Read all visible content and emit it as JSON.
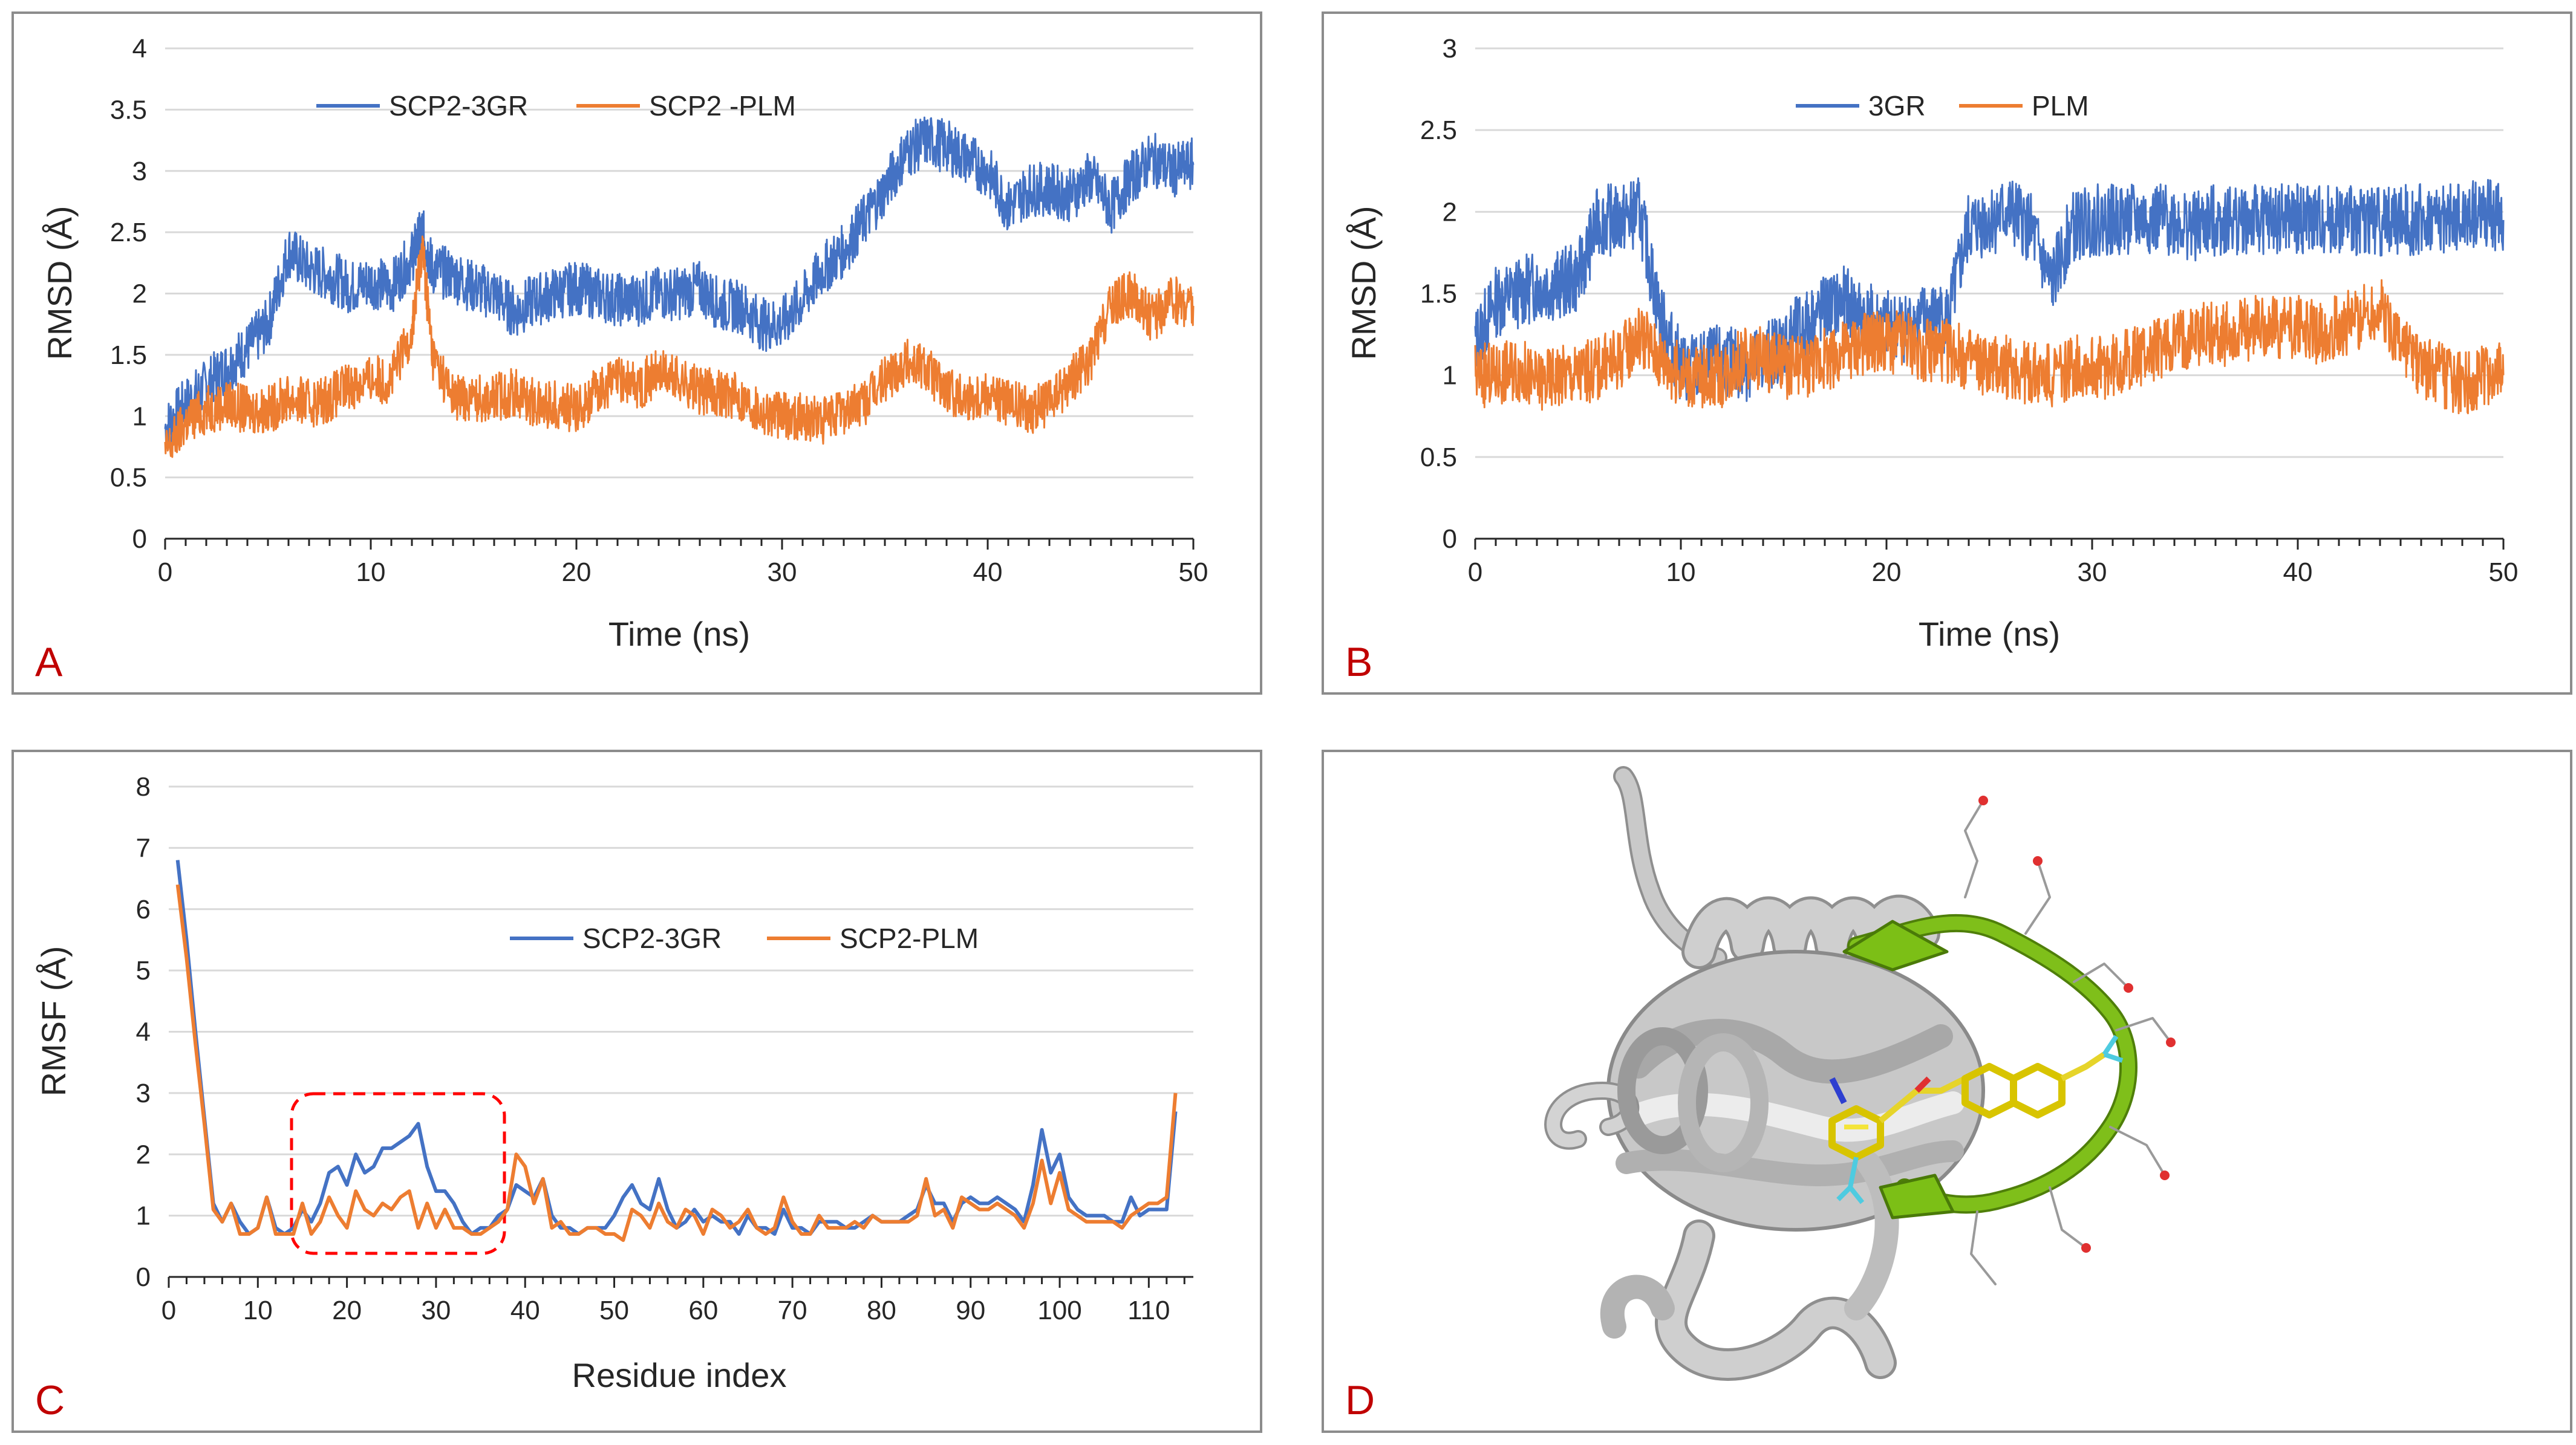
{
  "panels": {
    "a": {
      "label": "A"
    },
    "b": {
      "label": "B"
    },
    "c": {
      "label": "C"
    },
    "d": {
      "label": "D"
    }
  },
  "colors": {
    "blue": "#4472c4",
    "orange": "#ed7d31",
    "panel_label": "#c00000",
    "highlight_box": "#ff0000",
    "helix_gray": "#c4c4c4",
    "loop_green": "#6aaa0e",
    "ligand_yellow": "#f4e43a"
  },
  "chart_data": [
    {
      "type": "line",
      "panel": "A",
      "xlabel": "Time (ns)",
      "ylabel": "RMSD (Å)",
      "xlim": [
        0,
        50
      ],
      "ylim": [
        0,
        4
      ],
      "xticks": [
        0,
        10,
        20,
        30,
        40,
        50
      ],
      "yticks": [
        0,
        0.5,
        1,
        1.5,
        2,
        2.5,
        3,
        3.5,
        4
      ],
      "grid": true,
      "legend_position": "top-center",
      "series": [
        {
          "name": "SCP2-3GR",
          "color": "#4472c4",
          "x": [
            0,
            1,
            2,
            3,
            4,
            5,
            6,
            7,
            8,
            9,
            10,
            11,
            12,
            12.5,
            13,
            14,
            15,
            16,
            17,
            18,
            19,
            20,
            21,
            22,
            23,
            24,
            25,
            26,
            27,
            28,
            29,
            30,
            31,
            32,
            33,
            34,
            35,
            36,
            37,
            38,
            39,
            40,
            41,
            42,
            43,
            44,
            45,
            46,
            47,
            48,
            49,
            50
          ],
          "values": [
            0.9,
            1.1,
            1.25,
            1.4,
            1.55,
            1.75,
            2.35,
            2.2,
            2.15,
            2.05,
            2.1,
            2.05,
            2.3,
            2.5,
            2.2,
            2.15,
            2.05,
            2.0,
            1.85,
            1.95,
            2.0,
            2.05,
            2.0,
            1.95,
            1.95,
            2.0,
            2.0,
            2.05,
            1.9,
            1.9,
            1.75,
            1.75,
            1.95,
            2.2,
            2.35,
            2.6,
            2.85,
            3.15,
            3.25,
            3.2,
            3.1,
            3.0,
            2.7,
            2.85,
            2.85,
            2.8,
            2.95,
            2.7,
            2.95,
            3.1,
            3.0,
            3.05
          ]
        },
        {
          "name": "SCP2 -PLM",
          "color": "#ed7d31",
          "x": [
            0,
            1,
            2,
            3,
            4,
            5,
            6,
            7,
            8,
            9,
            10,
            11,
            12,
            12.5,
            13,
            14,
            15,
            16,
            17,
            18,
            19,
            20,
            21,
            22,
            23,
            24,
            25,
            26,
            27,
            28,
            29,
            30,
            31,
            32,
            33,
            34,
            35,
            36,
            37,
            38,
            39,
            40,
            41,
            42,
            43,
            44,
            45,
            46,
            47,
            48,
            49,
            50
          ],
          "values": [
            0.7,
            0.95,
            1.05,
            1.1,
            1.05,
            1.05,
            1.15,
            1.1,
            1.15,
            1.25,
            1.3,
            1.3,
            1.7,
            2.4,
            1.5,
            1.15,
            1.15,
            1.15,
            1.2,
            1.1,
            1.1,
            1.05,
            1.2,
            1.3,
            1.25,
            1.35,
            1.3,
            1.2,
            1.2,
            1.15,
            1.05,
            1.0,
            1.0,
            0.95,
            1.05,
            1.1,
            1.3,
            1.45,
            1.4,
            1.2,
            1.15,
            1.2,
            1.1,
            1.05,
            1.1,
            1.3,
            1.45,
            1.9,
            2.0,
            1.8,
            1.95,
            1.9
          ]
        }
      ]
    },
    {
      "type": "line",
      "panel": "B",
      "xlabel": "Time (ns)",
      "ylabel": "RMSD (Å)",
      "xlim": [
        0,
        50
      ],
      "ylim": [
        0,
        3
      ],
      "xticks": [
        0,
        10,
        20,
        30,
        40,
        50
      ],
      "yticks": [
        0,
        0.5,
        1,
        1.5,
        2,
        2.5,
        3
      ],
      "grid": true,
      "legend_position": "top-center",
      "series": [
        {
          "name": "3GR",
          "color": "#4472c4",
          "x": [
            0,
            1,
            2,
            3,
            4,
            5,
            6,
            7,
            8,
            9,
            10,
            11,
            12,
            13,
            14,
            15,
            16,
            17,
            18,
            19,
            20,
            21,
            22,
            23,
            24,
            25,
            26,
            27,
            28,
            29,
            30,
            31,
            32,
            33,
            34,
            35,
            36,
            37,
            38,
            39,
            40,
            41,
            42,
            43,
            44,
            45,
            46,
            47,
            48,
            49,
            50
          ],
          "values": [
            1.2,
            1.45,
            1.5,
            1.55,
            1.55,
            1.6,
            1.95,
            1.95,
            2.0,
            1.35,
            1.05,
            1.05,
            1.1,
            1.05,
            1.1,
            1.2,
            1.3,
            1.4,
            1.45,
            1.35,
            1.3,
            1.3,
            1.35,
            1.35,
            1.9,
            1.95,
            2.0,
            1.9,
            1.55,
            1.9,
            1.95,
            1.95,
            1.95,
            1.95,
            1.95,
            1.9,
            1.95,
            1.95,
            1.95,
            1.95,
            1.95,
            1.95,
            1.95,
            1.95,
            1.95,
            1.95,
            1.95,
            1.95,
            1.95,
            2.0,
            1.95
          ]
        },
        {
          "name": "PLM",
          "color": "#ed7d31",
          "x": [
            0,
            1,
            2,
            3,
            4,
            5,
            6,
            7,
            8,
            9,
            10,
            11,
            12,
            13,
            14,
            15,
            16,
            17,
            18,
            19,
            20,
            21,
            22,
            23,
            24,
            25,
            26,
            27,
            28,
            29,
            30,
            31,
            32,
            33,
            34,
            35,
            36,
            37,
            38,
            39,
            40,
            41,
            42,
            43,
            44,
            45,
            46,
            47,
            48,
            49,
            50
          ],
          "values": [
            1.0,
            1.0,
            1.05,
            0.95,
            1.0,
            1.0,
            1.05,
            1.1,
            1.25,
            1.1,
            1.0,
            1.0,
            1.0,
            1.1,
            1.1,
            1.05,
            1.05,
            1.1,
            1.15,
            1.2,
            1.2,
            1.2,
            1.15,
            1.15,
            1.1,
            1.05,
            1.05,
            1.0,
            1.0,
            1.05,
            1.05,
            1.05,
            1.1,
            1.15,
            1.2,
            1.25,
            1.25,
            1.25,
            1.3,
            1.3,
            1.3,
            1.25,
            1.3,
            1.35,
            1.4,
            1.2,
            1.05,
            1.0,
            0.95,
            1.0,
            1.0
          ]
        }
      ]
    },
    {
      "type": "line",
      "panel": "C",
      "xlabel": "Residue index",
      "ylabel": "RMSF (Å)",
      "xlim": [
        0,
        115
      ],
      "ylim": [
        0,
        8
      ],
      "xticks": [
        0,
        10,
        20,
        30,
        40,
        50,
        60,
        70,
        80,
        90,
        100,
        110
      ],
      "yticks": [
        0,
        1,
        2,
        3,
        4,
        5,
        6,
        7,
        8
      ],
      "grid": true,
      "legend_position": "center",
      "annotation": "dashed red box around residues 14-36",
      "series": [
        {
          "name": "SCP2-3GR",
          "color": "#4472c4",
          "x": [
            1,
            2,
            3,
            4,
            5,
            6,
            7,
            8,
            9,
            10,
            11,
            12,
            13,
            14,
            15,
            16,
            17,
            18,
            19,
            20,
            21,
            22,
            23,
            24,
            25,
            26,
            27,
            28,
            29,
            30,
            31,
            32,
            33,
            34,
            35,
            36,
            37,
            38,
            39,
            40,
            41,
            42,
            43,
            44,
            45,
            46,
            47,
            48,
            49,
            50,
            51,
            52,
            53,
            54,
            55,
            56,
            57,
            58,
            59,
            60,
            61,
            62,
            63,
            64,
            65,
            66,
            67,
            68,
            69,
            70,
            71,
            72,
            73,
            74,
            75,
            76,
            77,
            78,
            79,
            80,
            81,
            82,
            83,
            84,
            85,
            86,
            87,
            88,
            89,
            90,
            91,
            92,
            93,
            94,
            95,
            96,
            97,
            98,
            99,
            100,
            101,
            102,
            103,
            104,
            105,
            106,
            107,
            108,
            109,
            110,
            111,
            112,
            113
          ],
          "values": [
            6.8,
            5.5,
            4.0,
            2.6,
            1.2,
            0.9,
            1.2,
            0.9,
            0.7,
            0.8,
            1.3,
            0.8,
            0.7,
            0.8,
            1.1,
            0.9,
            1.2,
            1.7,
            1.8,
            1.5,
            2.0,
            1.7,
            1.8,
            2.1,
            2.1,
            2.2,
            2.3,
            2.5,
            1.8,
            1.4,
            1.4,
            1.2,
            0.9,
            0.7,
            0.8,
            0.8,
            1.0,
            1.1,
            1.5,
            1.4,
            1.3,
            1.6,
            1.0,
            0.8,
            0.8,
            0.7,
            0.8,
            0.8,
            0.8,
            1.0,
            1.3,
            1.5,
            1.2,
            1.1,
            1.6,
            1.1,
            0.8,
            0.9,
            1.1,
            0.9,
            1.0,
            0.9,
            0.9,
            0.7,
            1.0,
            0.8,
            0.8,
            0.7,
            1.1,
            0.8,
            0.8,
            0.7,
            0.9,
            0.9,
            0.9,
            0.8,
            0.8,
            0.9,
            1.0,
            0.9,
            0.9,
            0.9,
            1.0,
            1.1,
            1.5,
            1.2,
            1.2,
            0.9,
            1.2,
            1.3,
            1.2,
            1.2,
            1.3,
            1.2,
            1.1,
            0.9,
            1.5,
            2.4,
            1.7,
            2.0,
            1.3,
            1.1,
            1.0,
            1.0,
            1.0,
            0.9,
            0.9,
            1.3,
            1.0,
            1.1,
            1.1,
            1.1,
            2.7
          ]
        },
        {
          "name": "SCP2-PLM",
          "color": "#ed7d31",
          "x": [
            1,
            2,
            3,
            4,
            5,
            6,
            7,
            8,
            9,
            10,
            11,
            12,
            13,
            14,
            15,
            16,
            17,
            18,
            19,
            20,
            21,
            22,
            23,
            24,
            25,
            26,
            27,
            28,
            29,
            30,
            31,
            32,
            33,
            34,
            35,
            36,
            37,
            38,
            39,
            40,
            41,
            42,
            43,
            44,
            45,
            46,
            47,
            48,
            49,
            50,
            51,
            52,
            53,
            54,
            55,
            56,
            57,
            58,
            59,
            60,
            61,
            62,
            63,
            64,
            65,
            66,
            67,
            68,
            69,
            70,
            71,
            72,
            73,
            74,
            75,
            76,
            77,
            78,
            79,
            80,
            81,
            82,
            83,
            84,
            85,
            86,
            87,
            88,
            89,
            90,
            91,
            92,
            93,
            94,
            95,
            96,
            97,
            98,
            99,
            100,
            101,
            102,
            103,
            104,
            105,
            106,
            107,
            108,
            109,
            110,
            111,
            112,
            113
          ],
          "values": [
            6.4,
            5.2,
            3.8,
            2.5,
            1.1,
            0.9,
            1.2,
            0.7,
            0.7,
            0.8,
            1.3,
            0.7,
            0.7,
            0.7,
            1.2,
            0.7,
            0.9,
            1.3,
            1.0,
            0.8,
            1.4,
            1.1,
            1.0,
            1.2,
            1.1,
            1.3,
            1.4,
            0.8,
            1.2,
            0.8,
            1.1,
            0.8,
            0.8,
            0.7,
            0.7,
            0.8,
            0.9,
            1.1,
            2.0,
            1.8,
            1.2,
            1.6,
            0.8,
            0.9,
            0.7,
            0.7,
            0.8,
            0.8,
            0.7,
            0.7,
            0.6,
            1.1,
            1.0,
            0.8,
            1.2,
            0.9,
            0.8,
            1.1,
            1.0,
            0.7,
            1.1,
            1.0,
            0.8,
            0.9,
            1.1,
            0.8,
            0.7,
            0.8,
            1.3,
            0.9,
            0.7,
            0.7,
            1.0,
            0.8,
            0.8,
            0.8,
            0.9,
            0.8,
            1.0,
            0.9,
            0.9,
            0.9,
            0.9,
            1.0,
            1.6,
            1.0,
            1.1,
            0.8,
            1.3,
            1.2,
            1.1,
            1.1,
            1.2,
            1.1,
            1.0,
            0.8,
            1.2,
            1.9,
            1.2,
            1.7,
            1.1,
            1.0,
            0.9,
            0.9,
            0.9,
            0.9,
            0.8,
            1.0,
            1.1,
            1.2,
            1.2,
            1.3,
            3.0
          ]
        }
      ]
    }
  ]
}
